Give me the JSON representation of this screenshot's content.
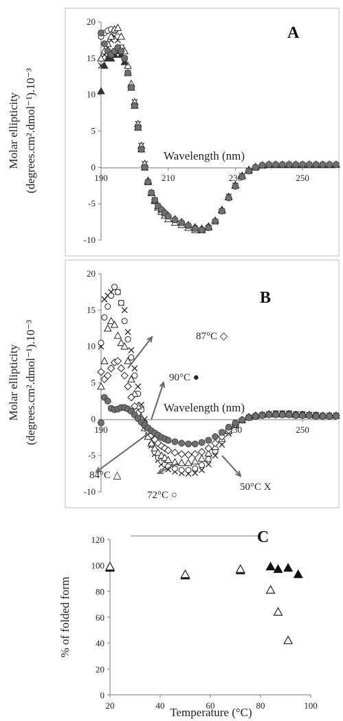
{
  "chart_data": [
    {
      "type": "scatter",
      "panel_label": "A",
      "ylabel_line1": "Molar ellipticity",
      "ylabel_line2": "(degrees.cm².dmol⁻¹).10⁻³",
      "xlabel": "Wavelength (nm)",
      "x_ticks": [
        "190",
        "210",
        "230",
        "250"
      ],
      "y_ticks": [
        "20",
        "15",
        "10",
        "5",
        "0",
        "-5",
        "-10"
      ],
      "xlim": [
        190,
        260
      ],
      "ylim": [
        -10,
        20
      ],
      "grid": false,
      "series": [
        {
          "marker": "cross",
          "color": "#222222",
          "x": [
            190,
            191,
            192,
            193,
            194,
            195,
            196,
            197,
            198,
            199,
            200,
            201,
            202,
            203,
            204,
            205,
            206,
            207,
            208,
            209,
            210,
            212,
            214,
            216,
            218,
            220,
            222,
            224,
            226,
            228,
            230,
            232,
            234,
            236,
            238,
            240,
            242,
            244,
            246,
            248,
            250,
            252,
            254,
            256,
            258,
            260
          ],
          "y": [
            14,
            15.5,
            16.5,
            17.5,
            18,
            17.5,
            16.5,
            15,
            13,
            11,
            9,
            6,
            3,
            0.5,
            -2,
            -3.5,
            -4.5,
            -5.5,
            -6,
            -6.5,
            -7,
            -7.5,
            -7.8,
            -8.2,
            -8.5,
            -8.7,
            -8.3,
            -7.5,
            -6,
            -4,
            -2.5,
            -1.2,
            -0.5,
            0,
            0.2,
            0.3,
            0.3,
            0.3,
            0.3,
            0.3,
            0.3,
            0.3,
            0.3,
            0.3,
            0.3,
            0.3
          ]
        },
        {
          "marker": "circle-open",
          "color": "#222222",
          "x": [
            190,
            191,
            192,
            193,
            194,
            195,
            196,
            197,
            198,
            199,
            200,
            201,
            202,
            203,
            204,
            205,
            206,
            207,
            208,
            209,
            210,
            212,
            214,
            216,
            218,
            220,
            222,
            224,
            226,
            228,
            230,
            232,
            234,
            236,
            238,
            240,
            242,
            244,
            246,
            248,
            250,
            252,
            254,
            256,
            258,
            260
          ],
          "y": [
            18,
            18.5,
            18.8,
            19,
            18.8,
            18,
            16.5,
            15,
            13,
            11,
            8.5,
            5.5,
            2.5,
            0,
            -2,
            -3.5,
            -4.5,
            -5.3,
            -5.8,
            -6.3,
            -6.8,
            -7.3,
            -7.6,
            -8,
            -8.3,
            -8.5,
            -8.2,
            -7.4,
            -6,
            -4.2,
            -2.6,
            -1.3,
            -0.5,
            0,
            0.3,
            0.4,
            0.4,
            0.4,
            0.4,
            0.4,
            0.4,
            0.4,
            0.4,
            0.4,
            0.4,
            0.4
          ]
        },
        {
          "marker": "triangle-open",
          "color": "#222222",
          "x": [
            190,
            191,
            192,
            193,
            194,
            195,
            196,
            197,
            198,
            199,
            200,
            201,
            202,
            203,
            204,
            205,
            206,
            207,
            208,
            209,
            210,
            212,
            214,
            216,
            218,
            220,
            222,
            224,
            226,
            228,
            230,
            232,
            234,
            236,
            238,
            240,
            242,
            244,
            246,
            248,
            250,
            252,
            254,
            256,
            258,
            260
          ],
          "y": [
            15,
            16,
            17,
            18,
            19,
            19.2,
            18,
            16,
            14,
            11.5,
            9,
            6,
            3,
            0.5,
            -1.8,
            -3.5,
            -4.6,
            -5.5,
            -6.1,
            -6.6,
            -7.1,
            -7.6,
            -7.9,
            -8.3,
            -8.6,
            -8.6,
            -8.2,
            -7.3,
            -5.8,
            -4,
            -2.4,
            -1.1,
            -0.3,
            0.1,
            0.3,
            0.4,
            0.4,
            0.4,
            0.4,
            0.4,
            0.4,
            0.4,
            0.4,
            0.4,
            0.4,
            0.4
          ]
        },
        {
          "marker": "triangle-filled",
          "color": "#333333",
          "x": [
            190,
            191,
            192,
            193,
            194,
            195,
            196,
            197,
            198,
            199,
            200,
            201,
            202,
            203,
            204,
            205,
            206,
            207,
            208,
            209,
            210,
            212,
            214,
            216,
            218,
            220,
            222,
            224,
            226,
            228,
            230,
            232,
            234,
            236,
            238,
            240,
            242,
            244,
            246,
            248,
            250,
            252,
            254,
            256,
            258,
            260
          ],
          "y": [
            10.5,
            14,
            15,
            15,
            15.5,
            16,
            15.5,
            14.5,
            13,
            11,
            8.5,
            5.5,
            2.5,
            0,
            -2,
            -3.5,
            -4.5,
            -5.3,
            -5.8,
            -6.2,
            -6.6,
            -7.1,
            -7.5,
            -7.9,
            -8.2,
            -8.4,
            -8.1,
            -7.3,
            -5.9,
            -4.1,
            -2.5,
            -1.2,
            -0.4,
            0,
            0.3,
            0.4,
            0.4,
            0.4,
            0.4,
            0.4,
            0.4,
            0.4,
            0.4,
            0.4,
            0.4,
            0.4
          ]
        },
        {
          "marker": "circle-filled",
          "color": "#707070",
          "x": [
            190,
            191,
            192,
            193,
            194,
            195,
            196,
            197,
            198,
            199,
            200,
            201,
            202,
            203,
            204,
            205,
            206,
            207,
            208,
            209,
            210,
            212,
            214,
            216,
            218,
            220,
            222,
            224,
            226,
            228,
            230,
            232,
            234,
            236,
            238,
            240,
            242,
            244,
            246,
            248,
            250,
            252,
            254,
            256,
            258,
            260
          ],
          "y": [
            18.5,
            17,
            16,
            15.5,
            16,
            16.5,
            16,
            15,
            13,
            11,
            8.5,
            5.5,
            2.5,
            0,
            -2,
            -3.5,
            -4.5,
            -5.3,
            -5.8,
            -6.3,
            -6.7,
            -7.2,
            -7.6,
            -8,
            -8.4,
            -8.6,
            -8.3,
            -7.4,
            -6,
            -4.2,
            -2.6,
            -1.3,
            -0.5,
            0,
            0.3,
            0.4,
            0.4,
            0.4,
            0.4,
            0.4,
            0.4,
            0.4,
            0.4,
            0.4,
            0.4,
            0.4
          ]
        }
      ]
    },
    {
      "type": "scatter",
      "panel_label": "B",
      "ylabel_line1": "Molar ellipticity",
      "ylabel_line2": "(degrees.cm².dmol⁻¹).10⁻³",
      "xlabel": "Wavelength (nm)",
      "x_ticks": [
        "190",
        "230",
        "250"
      ],
      "y_ticks": [
        "20",
        "15",
        "10",
        "5",
        "0",
        "-5",
        "-10"
      ],
      "xlim": [
        190,
        260
      ],
      "ylim": [
        -10,
        20
      ],
      "grid": false,
      "annotations": [
        {
          "text": "87°C ◇",
          "target_x": 198,
          "target_y": 7
        },
        {
          "text": "90°C ●",
          "target_x": 205,
          "target_y": 0
        },
        {
          "text": "84°C △",
          "target_x": 204,
          "target_y": -2
        },
        {
          "text": "72°C ○",
          "target_x": 213,
          "target_y": -6
        },
        {
          "text": "50°C  X",
          "target_x": 226,
          "target_y": -5
        }
      ],
      "series": [
        {
          "marker": "cross",
          "color": "#222222",
          "x": [
            190,
            191,
            192,
            193,
            194,
            195,
            196,
            197,
            198,
            199,
            200,
            201,
            202,
            203,
            204,
            205,
            206,
            207,
            208,
            209,
            210,
            212,
            214,
            216,
            218,
            220,
            222,
            224,
            226,
            228,
            230,
            232,
            234,
            236,
            238,
            240,
            242,
            244,
            246,
            248,
            250,
            252,
            254,
            256,
            258,
            260
          ],
          "y": [
            10,
            16.5,
            17,
            17.5,
            18,
            17.5,
            16,
            15,
            12,
            9.5,
            7,
            4.5,
            2,
            0,
            -2,
            -3.6,
            -4.8,
            -5.6,
            -6.2,
            -6.6,
            -6.9,
            -7.2,
            -7.4,
            -7.5,
            -7.4,
            -7,
            -6.2,
            -5,
            -3.5,
            -2,
            -0.9,
            -0.2,
            0.2,
            0.4,
            0.6,
            0.7,
            0.8,
            0.8,
            0.8,
            0.7,
            0.7,
            0.6,
            0.6,
            0.5,
            0.5,
            0.5
          ]
        },
        {
          "marker": "circle-open",
          "color": "#222222",
          "x": [
            190,
            191,
            192,
            193,
            194,
            195,
            196,
            197,
            198,
            199,
            200,
            201,
            202,
            203,
            204,
            205,
            206,
            207,
            208,
            209,
            210,
            212,
            214,
            216,
            218,
            220,
            222,
            224,
            226,
            228,
            230,
            232,
            234,
            236,
            238,
            240,
            242,
            244,
            246,
            248,
            250,
            252,
            254,
            256,
            258,
            260
          ],
          "y": [
            10.5,
            14,
            15.5,
            17,
            18.2,
            17.5,
            16,
            13.5,
            11,
            8.5,
            6,
            3.5,
            1.3,
            -0.6,
            -2.2,
            -3.5,
            -4.5,
            -5.3,
            -5.8,
            -6.2,
            -6.5,
            -6.8,
            -7,
            -7,
            -6.8,
            -6.3,
            -5.5,
            -4.4,
            -3,
            -1.8,
            -0.8,
            -0.1,
            0.3,
            0.5,
            0.6,
            0.7,
            0.8,
            0.8,
            0.8,
            0.7,
            0.7,
            0.6,
            0.6,
            0.5,
            0.5,
            0.5
          ]
        },
        {
          "marker": "triangle-open",
          "color": "#222222",
          "x": [
            190,
            191,
            192,
            193,
            194,
            195,
            196,
            197,
            198,
            199,
            200,
            201,
            202,
            203,
            204,
            205,
            206,
            207,
            208,
            209,
            210,
            212,
            214,
            216,
            218,
            220,
            222,
            224,
            226,
            228,
            230,
            232,
            234,
            236,
            238,
            240,
            242,
            244,
            246,
            248,
            250,
            252,
            254,
            256,
            258,
            260
          ],
          "y": [
            4.5,
            8,
            12.5,
            13.5,
            13,
            11.5,
            10.5,
            10,
            8,
            5.5,
            3.5,
            1.8,
            0.2,
            -1.2,
            -2.4,
            -3.3,
            -4,
            -4.6,
            -5,
            -5.3,
            -5.6,
            -5.9,
            -6,
            -6,
            -5.8,
            -5.4,
            -4.7,
            -3.8,
            -2.7,
            -1.6,
            -0.7,
            -0.1,
            0.3,
            0.5,
            0.6,
            0.7,
            0.7,
            0.7,
            0.7,
            0.6,
            0.6,
            0.6,
            0.5,
            0.5,
            0.5,
            0.5
          ]
        },
        {
          "marker": "diamond-open",
          "color": "#222222",
          "x": [
            190,
            191,
            192,
            193,
            194,
            195,
            196,
            197,
            198,
            199,
            200,
            201,
            202,
            203,
            204,
            205,
            206,
            207,
            208,
            209,
            210,
            212,
            214,
            216,
            218,
            220,
            222,
            224,
            226,
            228,
            230,
            232,
            234,
            236,
            238,
            240,
            242,
            244,
            246,
            248,
            250,
            252,
            254,
            256,
            258,
            260
          ],
          "y": [
            6.5,
            5.5,
            6,
            7,
            7.8,
            8,
            7,
            6,
            4.5,
            3,
            1.8,
            0.8,
            -0.1,
            -0.9,
            -1.6,
            -2.2,
            -2.8,
            -3.3,
            -3.7,
            -4,
            -4.3,
            -4.6,
            -4.8,
            -4.9,
            -4.8,
            -4.5,
            -4,
            -3.3,
            -2.4,
            -1.5,
            -0.7,
            -0.1,
            0.3,
            0.5,
            0.6,
            0.7,
            0.7,
            0.7,
            0.7,
            0.6,
            0.6,
            0.6,
            0.5,
            0.5,
            0.5,
            0.5
          ]
        },
        {
          "marker": "circle-filled",
          "color": "#707070",
          "x": [
            190,
            191,
            192,
            193,
            194,
            195,
            196,
            197,
            198,
            199,
            200,
            201,
            202,
            203,
            204,
            205,
            206,
            207,
            208,
            209,
            210,
            212,
            214,
            216,
            218,
            220,
            222,
            224,
            226,
            228,
            230,
            232,
            234,
            236,
            238,
            240,
            242,
            244,
            246,
            248,
            250,
            252,
            254,
            256,
            258,
            260
          ],
          "y": [
            -0.5,
            3,
            2.5,
            1.5,
            1.3,
            1.4,
            1.6,
            1.6,
            1.4,
            1.1,
            0.6,
            0.1,
            -0.4,
            -0.8,
            -1.2,
            -1.6,
            -1.9,
            -2.2,
            -2.5,
            -2.7,
            -2.9,
            -3.1,
            -3.3,
            -3.4,
            -3.4,
            -3.2,
            -2.9,
            -2.4,
            -1.8,
            -1.1,
            -0.5,
            -0.1,
            0.2,
            0.4,
            0.5,
            0.6,
            0.6,
            0.6,
            0.6,
            0.5,
            0.5,
            0.5,
            0.4,
            0.4,
            0.4,
            0.4
          ]
        }
      ]
    },
    {
      "type": "scatter",
      "panel_label": "C",
      "ylabel": "% of folded form",
      "xlabel": "Temperature (°C)",
      "x_ticks": [
        "20",
        "40",
        "60",
        "80",
        "100"
      ],
      "y_ticks": [
        "0",
        "20",
        "40",
        "60",
        "80",
        "100",
        "120"
      ],
      "xlim": [
        20,
        100
      ],
      "ylim": [
        0,
        120
      ],
      "grid": false,
      "series": [
        {
          "marker": "triangle-open",
          "color": "#222222",
          "x": [
            20,
            50,
            72,
            84,
            87,
            91
          ],
          "y": [
            99,
            93,
            97,
            81,
            64,
            42
          ]
        },
        {
          "marker": "triangle-filled",
          "color": "#111111",
          "x": [
            20,
            50,
            72,
            84,
            87,
            91,
            95
          ],
          "y": [
            98,
            92,
            96,
            99,
            97,
            98,
            93
          ]
        }
      ]
    }
  ]
}
